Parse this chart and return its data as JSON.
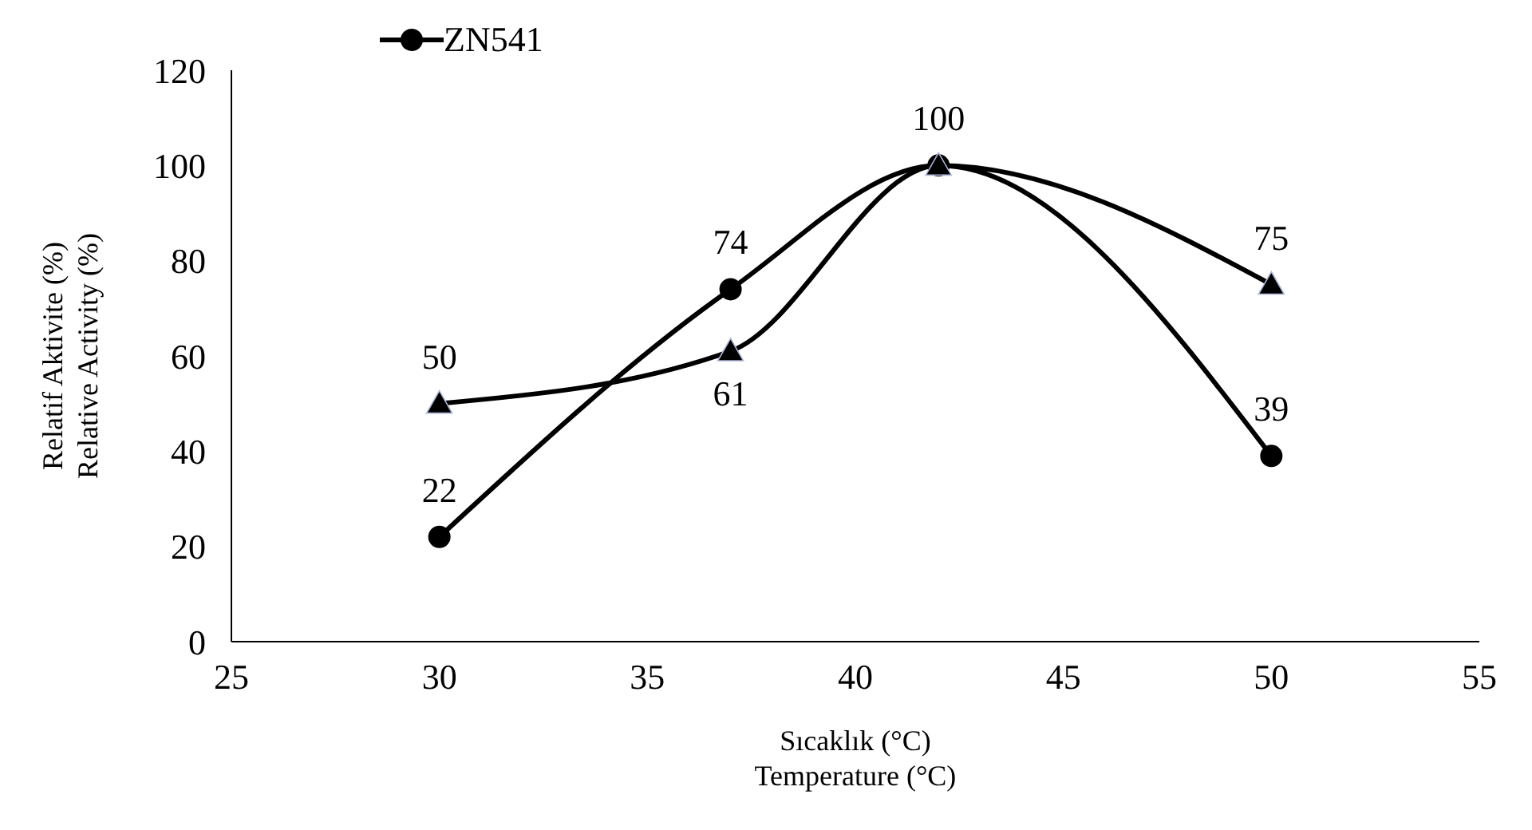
{
  "chart_data": {
    "type": "line",
    "xlabel": "Sıcaklık (°C)\nTemperature (°C)",
    "ylabel": "Relatif Aktivite (%)\nRelative Activity (%)",
    "x": [
      30,
      37,
      42,
      50
    ],
    "series": [
      {
        "name": "ZN541",
        "color": "#000000",
        "marker": "circle",
        "values": [
          22,
          74,
          100,
          39
        ],
        "value_labels": [
          "22",
          "74",
          "100",
          "39"
        ]
      },
      {
        "color": "#000000",
        "marker": "triangle",
        "values": [
          50,
          61,
          100,
          75
        ],
        "value_labels": [
          "50",
          "61",
          null,
          "75"
        ]
      }
    ],
    "xlim": [
      25,
      55
    ],
    "xticks": [
      25,
      30,
      35,
      40,
      45,
      50,
      55
    ],
    "ylim": [
      0,
      120
    ],
    "yticks": [
      0,
      20,
      40,
      60,
      80,
      100,
      120
    ],
    "grid": false,
    "legend": "top left"
  }
}
